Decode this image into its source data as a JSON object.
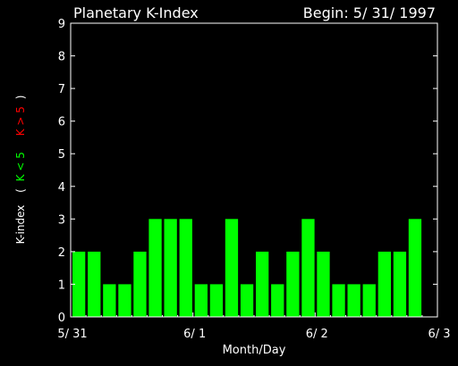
{
  "chart_data": {
    "type": "bar",
    "title": "Planetary K-Index",
    "subtitle": "Begin: 5/ 31/ 1997",
    "xlabel": "Month/Day",
    "ylabel": {
      "prefix": "K-index",
      "open_paren": "(",
      "low_label": "K < 5",
      "high_label": "K > 5",
      "close_paren": ")"
    },
    "ylim": [
      0,
      9
    ],
    "yticks": [
      "0",
      "1",
      "2",
      "3",
      "4",
      "5",
      "6",
      "7",
      "8",
      "9"
    ],
    "xlim_days": [
      0,
      3
    ],
    "xticks": [
      "5/ 31",
      "6/ 1",
      "6/ 2",
      "6/ 3"
    ],
    "bars_per_day": 8,
    "values": [
      2,
      2,
      1,
      1,
      2,
      3,
      3,
      3,
      1,
      1,
      3,
      1,
      2,
      1,
      2,
      3,
      2,
      1,
      1,
      1,
      2,
      2,
      3
    ],
    "colors": {
      "bar": "#00ff00",
      "ylabel_low": "#00ff00",
      "ylabel_high": "#ff0000",
      "axes": "#ffffff",
      "background": "#000000"
    }
  }
}
